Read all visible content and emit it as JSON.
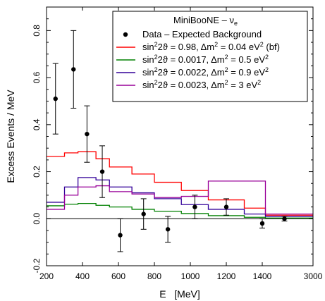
{
  "chart_data": {
    "type": "line",
    "xlabel": "E   [MeV]",
    "ylabel": "Excess Events / MeV",
    "xlim": [
      200,
      3000
    ],
    "ylim": [
      -0.2,
      0.9
    ],
    "x_tick_labels": [
      "200",
      "400",
      "600",
      "800",
      "1000",
      "1200",
      "1400",
      "3000"
    ],
    "y_tick_labels": [
      "-0.2",
      "0.0",
      "0.2",
      "0.4",
      "0.6",
      "0.8"
    ],
    "legend_title_main": "MiniBooNE – ν",
    "legend_title_sub": "e",
    "data_points": {
      "name": "Data – Expected Background",
      "x": [
        250,
        350,
        425,
        510,
        610,
        740,
        875,
        1025,
        1200,
        1400,
        2100
      ],
      "y": [
        0.51,
        0.635,
        0.36,
        0.2,
        -0.07,
        0.02,
        -0.045,
        0.05,
        0.05,
        -0.02,
        0.0
      ],
      "err": [
        0.15,
        0.165,
        0.12,
        0.11,
        0.07,
        0.065,
        0.055,
        0.05,
        0.035,
        0.02,
        0.01
      ]
    },
    "bin_edges": [
      200,
      300,
      375,
      475,
      550,
      675,
      800,
      950,
      1100,
      1300,
      1500,
      3000
    ],
    "series": [
      {
        "name": "sin²2ϑ = 0.98, Δm² = 0.04 eV² (bf)",
        "color": "#ff0000",
        "values": [
          0.265,
          0.28,
          0.285,
          0.255,
          0.22,
          0.19,
          0.155,
          0.12,
          0.08,
          0.045,
          0.015
        ]
      },
      {
        "name": "sin²2ϑ = 0.0017, Δm² = 0.5 eV²",
        "color": "#008000",
        "values": [
          0.055,
          0.062,
          0.065,
          0.057,
          0.05,
          0.04,
          0.032,
          0.022,
          0.013,
          0.006,
          0.003
        ]
      },
      {
        "name": "sin²2ϑ = 0.0022, Δm² = 0.9 eV²",
        "color": "#330099",
        "values": [
          0.07,
          0.135,
          0.175,
          0.165,
          0.135,
          0.11,
          0.085,
          0.06,
          0.04,
          0.02,
          0.01
        ]
      },
      {
        "name": "sin²2ϑ = 0.0023, Δm² = 3 eV²",
        "color": "#990099",
        "values": [
          0.04,
          0.1,
          0.135,
          0.14,
          0.115,
          0.105,
          0.09,
          0.095,
          0.16,
          0.16,
          0.02
        ]
      }
    ],
    "legend_labels": [
      {
        "pre": "sin",
        "s1": "2",
        "mid": "2ϑ = 0.98, Δm",
        "s2": "2",
        "tail": " = 0.04 eV",
        "s3": "2",
        "post": " (bf)"
      },
      {
        "pre": "sin",
        "s1": "2",
        "mid": "2ϑ = 0.0017, Δm",
        "s2": "2",
        "tail": " = 0.5 eV",
        "s3": "2",
        "post": ""
      },
      {
        "pre": "sin",
        "s1": "2",
        "mid": "2ϑ = 0.0022, Δm",
        "s2": "2",
        "tail": " = 0.9 eV",
        "s3": "2",
        "post": ""
      },
      {
        "pre": "sin",
        "s1": "2",
        "mid": "2ϑ = 0.0023, Δm",
        "s2": "2",
        "tail": " = 3 eV",
        "s3": "2",
        "post": ""
      }
    ],
    "grid": false,
    "legend_placement": "top-right",
    "zero_line": true
  }
}
